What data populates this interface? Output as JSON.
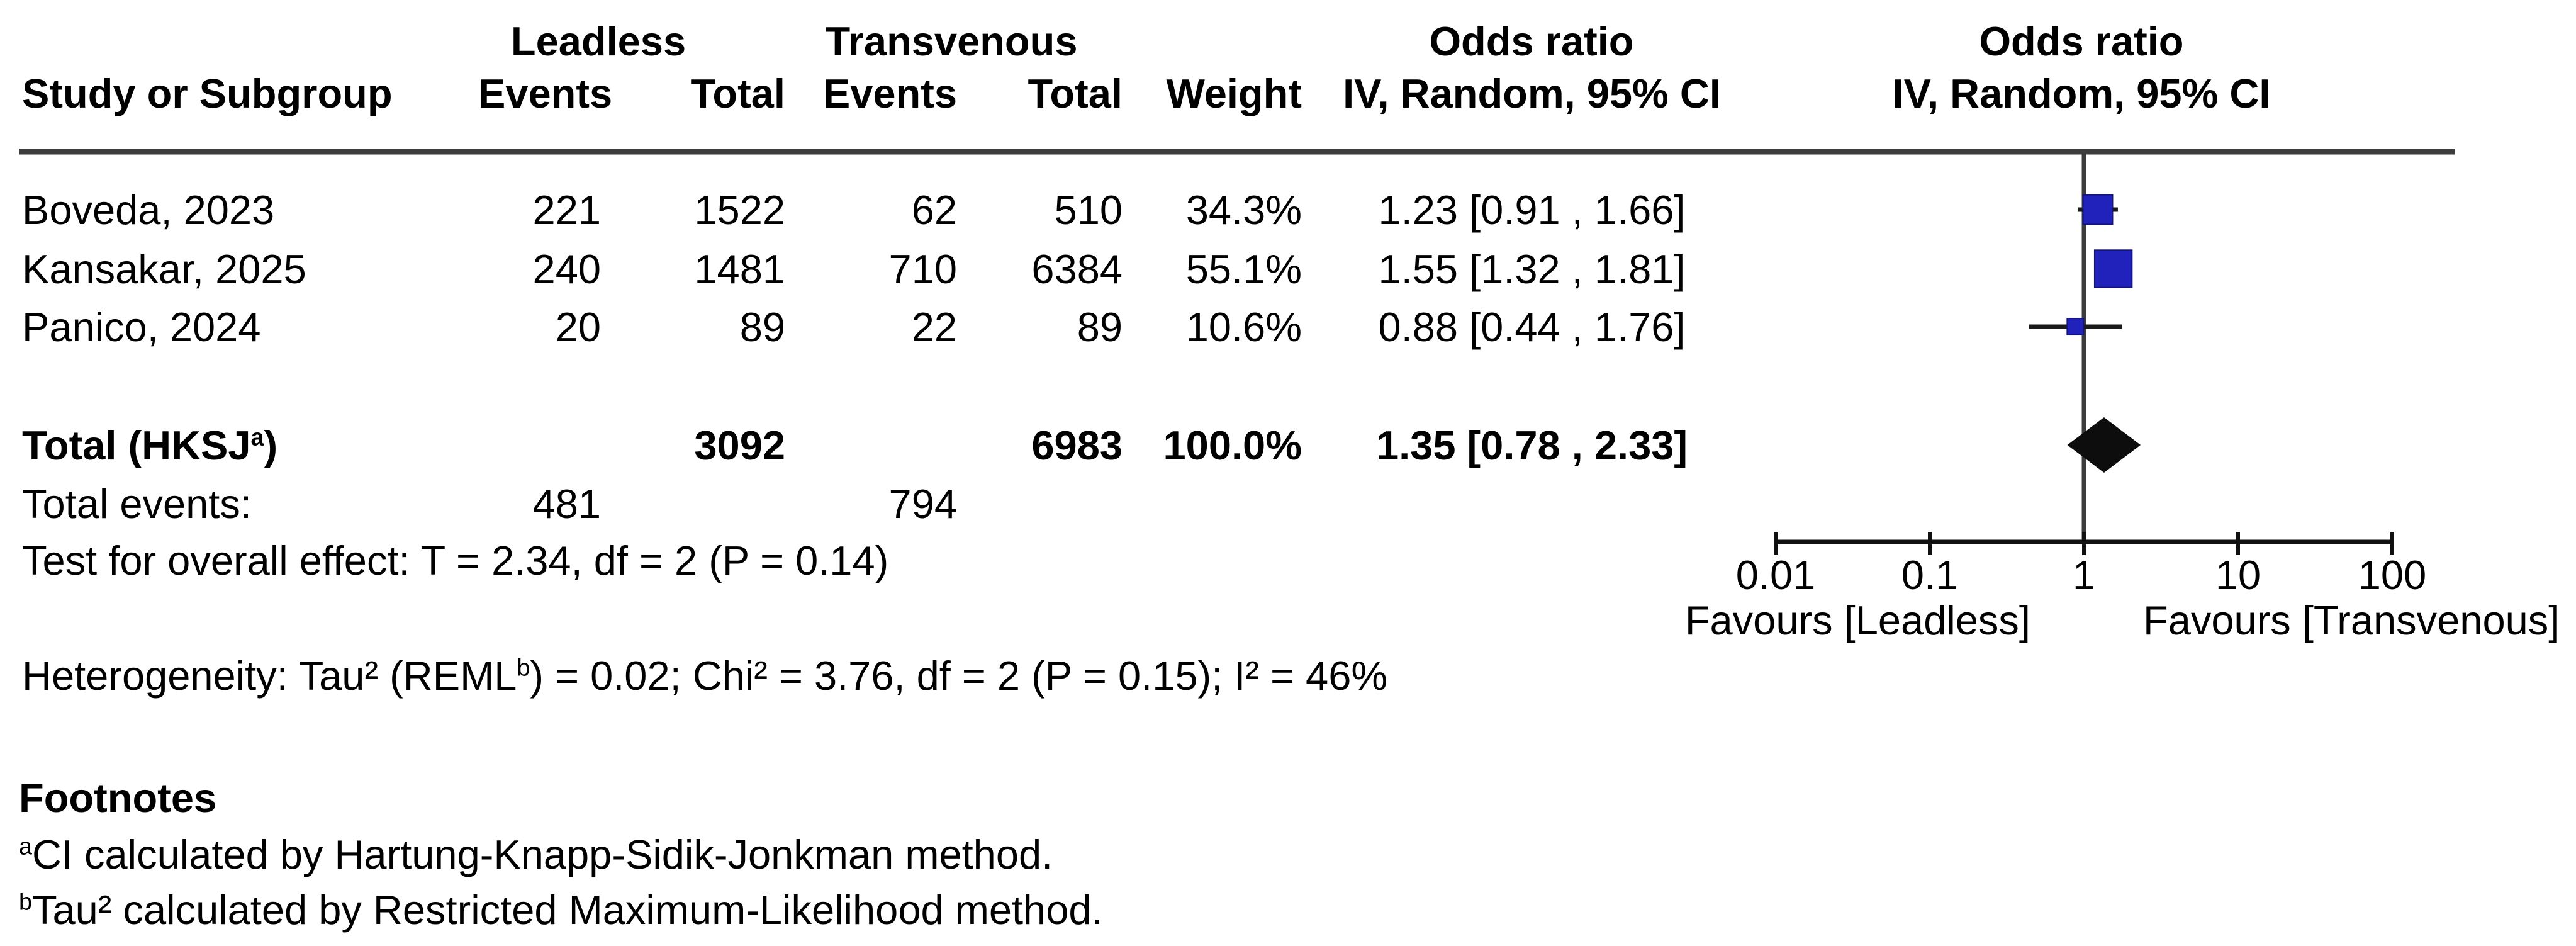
{
  "table": {
    "headers": {
      "group1": "Leadless",
      "group2": "Transvenous",
      "study": "Study or Subgroup",
      "events": "Events",
      "total": "Total",
      "weight": "Weight",
      "or_title": "Odds ratio",
      "or_sub": "IV, Random, 95% CI",
      "plot_title": "Odds ratio",
      "plot_sub": "IV, Random, 95% CI"
    },
    "studies": [
      {
        "name": "Boveda, 2023",
        "e1": "221",
        "t1": "1522",
        "e2": "62",
        "t2": "510",
        "weight": "34.3%",
        "ci": "1.23 [0.91 , 1.66]"
      },
      {
        "name": "Kansakar, 2025",
        "e1": "240",
        "t1": "1481",
        "e2": "710",
        "t2": "6384",
        "weight": "55.1%",
        "ci": "1.55 [1.32 , 1.81]"
      },
      {
        "name": "Panico, 2024",
        "e1": "20",
        "t1": "89",
        "e2": "22",
        "t2": "89",
        "weight": "10.6%",
        "ci": "0.88 [0.44 , 1.76]"
      }
    ],
    "total_row": {
      "label_pre": "Total (HKSJ",
      "label_sup": "a",
      "label_post": ")",
      "t1": "3092",
      "t2": "6983",
      "weight": "100.0%",
      "ci": "1.35 [0.78 , 2.33]"
    },
    "total_events": {
      "label": "Total events:",
      "e1": "481",
      "e2": "794"
    },
    "overall_effect": "Test for overall effect: T = 2.34, df = 2 (P = 0.14)",
    "heterogeneity": {
      "pre": "Heterogeneity: Tau² (REML",
      "sup": "b",
      "post": ") = 0.02; Chi² = 3.76, df = 2 (P = 0.15); I² = 46%"
    }
  },
  "footnotes": {
    "title": "Footnotes",
    "items": [
      {
        "sup": "a",
        "text": "CI calculated by Hartung-Knapp-Sidik-Jonkman method."
      },
      {
        "sup": "b",
        "text": "Tau² calculated by Restricted Maximum-Likelihood method."
      }
    ]
  },
  "chart_data": {
    "type": "forest",
    "x_scale": "log10",
    "xlim": [
      0.01,
      100
    ],
    "tick_values": [
      0.01,
      0.1,
      1,
      10,
      100
    ],
    "tick_labels": [
      "0.01",
      "0.1",
      "1",
      "10",
      "100"
    ],
    "null_line": 1,
    "effect_measure": "Odds ratio, IV, Random, 95% CI",
    "studies": [
      {
        "name": "Boveda, 2023",
        "or": 1.23,
        "ci_low": 0.91,
        "ci_high": 1.66,
        "weight_pct": 34.3
      },
      {
        "name": "Kansakar, 2025",
        "or": 1.55,
        "ci_low": 1.32,
        "ci_high": 1.81,
        "weight_pct": 55.1
      },
      {
        "name": "Panico, 2024",
        "or": 0.88,
        "ci_low": 0.44,
        "ci_high": 1.76,
        "weight_pct": 10.6
      }
    ],
    "total": {
      "or": 1.35,
      "ci_low": 0.78,
      "ci_high": 2.33
    },
    "favours_left": "Favours [Leadless]",
    "favours_right": "Favours [Transvenous]",
    "marker_color": "#2121bb",
    "marker_edge_color": "#14147a",
    "diamond_color": "#0d0d0d",
    "line_color": "#1a1a1a",
    "null_line_color": "#3d3d3d"
  }
}
